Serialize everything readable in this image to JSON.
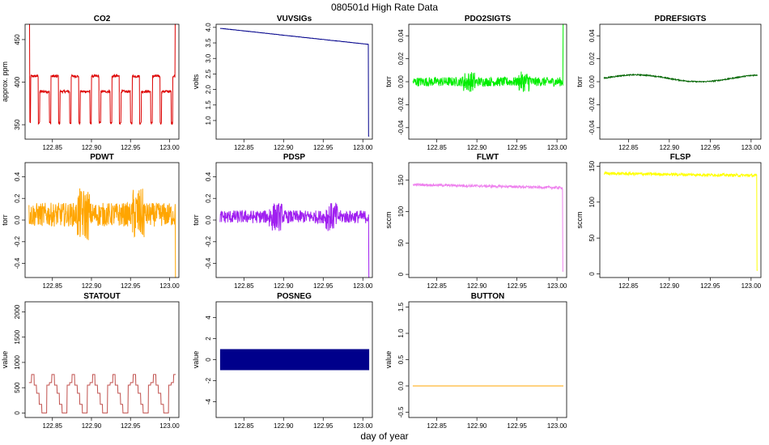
{
  "title": "080501d   High Rate Data",
  "xlabel": "day of year",
  "chart_data": [
    {
      "type": "line",
      "name": "co2",
      "title": "CO2",
      "ylabel": "approx. ppm",
      "color": "#dd0000",
      "xlim": [
        122.815,
        123.012
      ],
      "ylim": [
        333,
        468
      ],
      "xticks": [
        "122.85",
        "122.90",
        "122.95",
        "123.00"
      ],
      "yticks": [
        "350",
        "400",
        "450"
      ],
      "pattern": "square",
      "period": 0.026,
      "duty": 0.45,
      "level_hi": 407,
      "level_mid": 389,
      "level_lo": 352,
      "noise": 3,
      "start_spike": 470,
      "end_spike": 470
    },
    {
      "type": "line",
      "name": "vuvsigs",
      "title": "VUVSIGs",
      "ylabel": "volts",
      "color": "#00008b",
      "xlim": [
        122.815,
        123.012
      ],
      "ylim": [
        0.4,
        4.1
      ],
      "xticks": [
        "122.85",
        "122.90",
        "122.95",
        "123.00"
      ],
      "yticks": [
        "1.0",
        "1.5",
        "2.0",
        "2.5",
        "3.0",
        "3.5",
        "4.0"
      ],
      "pattern": "decay",
      "start": 3.97,
      "end": 3.45,
      "final_drop": 0.5,
      "noise": 0.03
    },
    {
      "type": "line",
      "name": "pdo2sigts",
      "title": "PDO2SIGTS",
      "ylabel": "torr",
      "color": "#00ee00",
      "xlim": [
        122.815,
        123.012
      ],
      "ylim": [
        -0.05,
        0.05
      ],
      "xticks": [
        "122.85",
        "122.90",
        "122.95",
        "123.00"
      ],
      "yticks": [
        "-0.04",
        "-0.02",
        "0.00",
        "0.02",
        "0.04"
      ],
      "pattern": "noise",
      "center": 0.0,
      "noise": 0.004,
      "bursts": [
        122.89,
        122.96
      ],
      "end_spike": 0.05
    },
    {
      "type": "line",
      "name": "pdrefsigts",
      "title": "PDREFSIGTS",
      "ylabel": "torr",
      "color": "#006400",
      "xlim": [
        122.815,
        123.012
      ],
      "ylim": [
        -0.05,
        0.05
      ],
      "xticks": [
        "122.85",
        "122.90",
        "122.95",
        "123.00"
      ],
      "yticks": [
        "-0.04",
        "-0.02",
        "0.00",
        "0.02",
        "0.04"
      ],
      "pattern": "wave",
      "center": 0.003,
      "amp": 0.003,
      "noise": 0.001
    },
    {
      "type": "line",
      "name": "pdwt",
      "title": "PDWT",
      "ylabel": "torr",
      "color": "#ffa500",
      "xlim": [
        122.815,
        123.012
      ],
      "ylim": [
        -0.53,
        0.53
      ],
      "xticks": [
        "122.85",
        "122.90",
        "122.95",
        "123.00"
      ],
      "yticks": [
        "-0.4",
        "-0.2",
        "0.0",
        "0.2",
        "0.4"
      ],
      "pattern": "noise",
      "center": 0.05,
      "noise": 0.11,
      "bursts": [
        122.89,
        122.96
      ],
      "end_spike": -0.53
    },
    {
      "type": "line",
      "name": "pdsp",
      "title": "PDSP",
      "ylabel": "torr",
      "color": "#a020f0",
      "xlim": [
        122.815,
        123.012
      ],
      "ylim": [
        -0.53,
        0.53
      ],
      "xticks": [
        "122.85",
        "122.90",
        "122.95",
        "123.00"
      ],
      "yticks": [
        "-0.4",
        "-0.2",
        "0.0",
        "0.2",
        "0.4"
      ],
      "pattern": "noise",
      "center": 0.03,
      "noise": 0.06,
      "bursts": [
        122.89,
        122.96
      ],
      "end_spike": -0.53
    },
    {
      "type": "line",
      "name": "flwt",
      "title": "FLWT",
      "ylabel": "sccm",
      "color": "#ee82ee",
      "xlim": [
        122.815,
        123.012
      ],
      "ylim": [
        -5,
        178
      ],
      "xticks": [
        "122.85",
        "122.90",
        "122.95",
        "123.00"
      ],
      "yticks": [
        "0",
        "50",
        "100",
        "150"
      ],
      "pattern": "flat",
      "start": 143,
      "end": 138,
      "noise": 4,
      "final_drop": 5
    },
    {
      "type": "line",
      "name": "flsp",
      "title": "FLSP",
      "ylabel": "sccm",
      "color": "#ffff00",
      "xlim": [
        122.815,
        123.012
      ],
      "ylim": [
        -5,
        155
      ],
      "xticks": [
        "122.85",
        "122.90",
        "122.95",
        "123.00"
      ],
      "yticks": [
        "0",
        "50",
        "100",
        "150"
      ],
      "pattern": "flat",
      "start": 140,
      "end": 137,
      "noise": 4,
      "final_drop": 5
    },
    {
      "type": "line",
      "name": "statout",
      "title": "STATOUT",
      "ylabel": "value",
      "color": "#c0504d",
      "xlim": [
        122.815,
        123.012
      ],
      "ylim": [
        -90,
        2200
      ],
      "xticks": [
        "122.85",
        "122.90",
        "122.95",
        "123.00"
      ],
      "yticks": [
        "0",
        "500",
        "1000",
        "1500",
        "2000"
      ],
      "pattern": "steps",
      "period": 0.026,
      "levels": [
        600,
        760,
        550,
        390,
        170,
        0,
        0,
        550
      ]
    },
    {
      "type": "band",
      "name": "posneg",
      "title": "POSNEG",
      "ylabel": "value",
      "color": "#00008b",
      "xlim": [
        122.815,
        123.012
      ],
      "ylim": [
        -5.5,
        5.5
      ],
      "xticks": [
        "122.85",
        "122.90",
        "122.95",
        "123.00"
      ],
      "yticks": [
        "-4",
        "-2",
        "0",
        "2",
        "4"
      ],
      "band": [
        -1,
        1
      ],
      "x_range": [
        122.82,
        123.008
      ]
    },
    {
      "type": "line",
      "name": "button",
      "title": "BUTTON",
      "ylabel": "value",
      "color": "#ffa500",
      "xlim": [
        122.815,
        123.012
      ],
      "ylim": [
        -0.6,
        1.6
      ],
      "xticks": [
        "122.85",
        "122.90",
        "122.95",
        "123.00"
      ],
      "yticks": [
        "-0.5",
        "0.0",
        "0.5",
        "1.0",
        "1.5"
      ],
      "pattern": "const",
      "center": 0.0,
      "noise": 0
    }
  ]
}
